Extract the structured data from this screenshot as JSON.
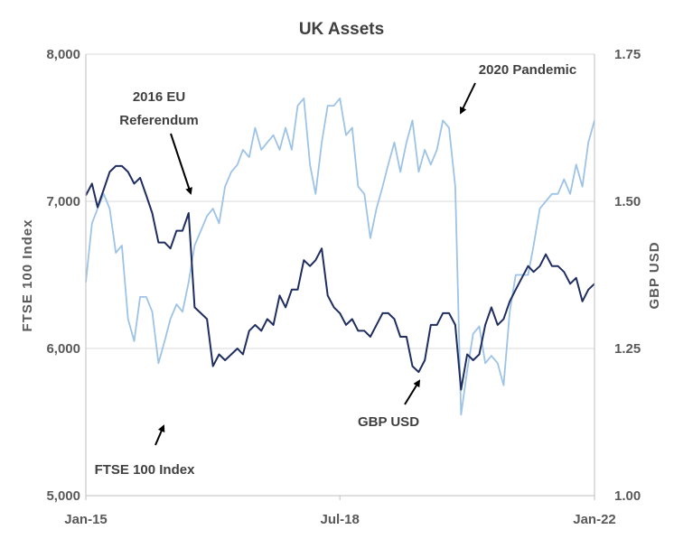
{
  "chart_data": {
    "type": "line",
    "title": "UK Assets",
    "ylabel_left": "FTSE 100 Index",
    "ylabel_right": "GBP USD",
    "x_tick_labels": [
      "Jan-15",
      "Jul-18",
      "Jan-22"
    ],
    "left_axis": {
      "min": 5000,
      "max": 8000,
      "ticks": [
        5000,
        6000,
        7000,
        8000
      ],
      "tick_labels": [
        "5,000",
        "6,000",
        "7,000",
        "8,000"
      ]
    },
    "right_axis": {
      "min": 1.0,
      "max": 1.75,
      "ticks": [
        1.0,
        1.25,
        1.5,
        1.75
      ],
      "tick_labels": [
        "1.00",
        "1.25",
        "1.50",
        "1.75"
      ]
    },
    "grid": true,
    "series": [
      {
        "name": "FTSE 100 Index",
        "axis": "left",
        "color": "#9dc3e6",
        "x": [
          "2015-01",
          "2015-02",
          "2015-03",
          "2015-04",
          "2015-05",
          "2015-06",
          "2015-07",
          "2015-08",
          "2015-09",
          "2015-10",
          "2015-11",
          "2015-12",
          "2016-01",
          "2016-02",
          "2016-03",
          "2016-04",
          "2016-05",
          "2016-06",
          "2016-07",
          "2016-08",
          "2016-09",
          "2016-10",
          "2016-11",
          "2016-12",
          "2017-01",
          "2017-02",
          "2017-03",
          "2017-04",
          "2017-05",
          "2017-06",
          "2017-07",
          "2017-08",
          "2017-09",
          "2017-10",
          "2017-11",
          "2017-12",
          "2018-01",
          "2018-02",
          "2018-03",
          "2018-04",
          "2018-05",
          "2018-06",
          "2018-07",
          "2018-08",
          "2018-09",
          "2018-10",
          "2018-11",
          "2018-12",
          "2019-01",
          "2019-02",
          "2019-03",
          "2019-04",
          "2019-05",
          "2019-06",
          "2019-07",
          "2019-08",
          "2019-09",
          "2019-10",
          "2019-11",
          "2019-12",
          "2020-01",
          "2020-02",
          "2020-03",
          "2020-04",
          "2020-05",
          "2020-06",
          "2020-07",
          "2020-08",
          "2020-09",
          "2020-10",
          "2020-11",
          "2020-12",
          "2021-01",
          "2021-02",
          "2021-03",
          "2021-04",
          "2021-05",
          "2021-06",
          "2021-07",
          "2021-08",
          "2021-09",
          "2021-10",
          "2021-11",
          "2021-12",
          "2022-01"
        ],
        "values": [
          6450,
          6850,
          6950,
          7050,
          6950,
          6650,
          6700,
          6200,
          6050,
          6350,
          6350,
          6250,
          5900,
          6050,
          6200,
          6300,
          6250,
          6450,
          6700,
          6800,
          6900,
          6950,
          6850,
          7100,
          7200,
          7250,
          7350,
          7300,
          7500,
          7350,
          7400,
          7450,
          7350,
          7500,
          7350,
          7650,
          7700,
          7250,
          7050,
          7400,
          7650,
          7650,
          7700,
          7450,
          7500,
          7100,
          7050,
          6750,
          6950,
          7100,
          7250,
          7400,
          7200,
          7400,
          7550,
          7200,
          7350,
          7250,
          7350,
          7550,
          7500,
          7100,
          5550,
          5850,
          6100,
          6150,
          5900,
          5950,
          5900,
          5750,
          6250,
          6500,
          6500,
          6500,
          6700,
          6950,
          7000,
          7050,
          7050,
          7150,
          7050,
          7250,
          7100,
          7400,
          7550
        ]
      },
      {
        "name": "GBP USD",
        "axis": "right",
        "color": "#1f2d60",
        "x": [
          "2015-01",
          "2015-02",
          "2015-03",
          "2015-04",
          "2015-05",
          "2015-06",
          "2015-07",
          "2015-08",
          "2015-09",
          "2015-10",
          "2015-11",
          "2015-12",
          "2016-01",
          "2016-02",
          "2016-03",
          "2016-04",
          "2016-05",
          "2016-06",
          "2016-07",
          "2016-08",
          "2016-09",
          "2016-10",
          "2016-11",
          "2016-12",
          "2017-01",
          "2017-02",
          "2017-03",
          "2017-04",
          "2017-05",
          "2017-06",
          "2017-07",
          "2017-08",
          "2017-09",
          "2017-10",
          "2017-11",
          "2017-12",
          "2018-01",
          "2018-02",
          "2018-03",
          "2018-04",
          "2018-05",
          "2018-06",
          "2018-07",
          "2018-08",
          "2018-09",
          "2018-10",
          "2018-11",
          "2018-12",
          "2019-01",
          "2019-02",
          "2019-03",
          "2019-04",
          "2019-05",
          "2019-06",
          "2019-07",
          "2019-08",
          "2019-09",
          "2019-10",
          "2019-11",
          "2019-12",
          "2020-01",
          "2020-02",
          "2020-03",
          "2020-04",
          "2020-05",
          "2020-06",
          "2020-07",
          "2020-08",
          "2020-09",
          "2020-10",
          "2020-11",
          "2020-12",
          "2021-01",
          "2021-02",
          "2021-03",
          "2021-04",
          "2021-05",
          "2021-06",
          "2021-07",
          "2021-08",
          "2021-09",
          "2021-10",
          "2021-11",
          "2021-12",
          "2022-01"
        ],
        "values": [
          1.51,
          1.53,
          1.49,
          1.52,
          1.55,
          1.56,
          1.56,
          1.55,
          1.53,
          1.54,
          1.51,
          1.48,
          1.43,
          1.43,
          1.42,
          1.45,
          1.45,
          1.48,
          1.32,
          1.31,
          1.3,
          1.22,
          1.24,
          1.23,
          1.24,
          1.25,
          1.24,
          1.28,
          1.29,
          1.28,
          1.3,
          1.29,
          1.34,
          1.32,
          1.35,
          1.35,
          1.4,
          1.39,
          1.4,
          1.42,
          1.34,
          1.32,
          1.31,
          1.29,
          1.3,
          1.28,
          1.28,
          1.27,
          1.29,
          1.31,
          1.31,
          1.3,
          1.27,
          1.27,
          1.22,
          1.21,
          1.23,
          1.29,
          1.29,
          1.31,
          1.31,
          1.29,
          1.18,
          1.24,
          1.23,
          1.24,
          1.29,
          1.32,
          1.29,
          1.3,
          1.33,
          1.35,
          1.37,
          1.39,
          1.38,
          1.39,
          1.41,
          1.39,
          1.39,
          1.38,
          1.36,
          1.37,
          1.33,
          1.35,
          1.36
        ]
      }
    ],
    "annotations": {
      "referendum_line1": "2016 EU",
      "referendum_line2": "Referendum",
      "pandemic": "2020  Pandemic",
      "gbp_usd": "GBP USD",
      "ftse": "FTSE 100 Index"
    }
  }
}
